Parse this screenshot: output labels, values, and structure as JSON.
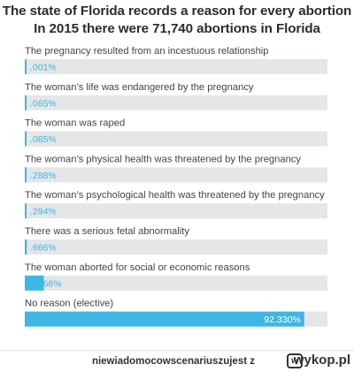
{
  "header": {
    "title_line1": "The state of Florida records a reason for every abortion",
    "title_line2": "In 2015 there were 71,740 abortions in Florida"
  },
  "chart_data": {
    "type": "bar",
    "orientation": "horizontal",
    "categories": [
      "The pregnancy resulted from an incestuous relationship",
      "The woman’s life was endangered by the pregnancy",
      "The woman was raped",
      "The woman’s physical health was threatened by the pregnancy",
      "The woman’s psychological health was threatened by the pregnancy",
      "There was a serious fetal abnormality",
      "The woman aborted for social or economic reasons",
      "No reason (elective)"
    ],
    "values": [
      0.001,
      0.065,
      0.085,
      0.288,
      0.294,
      0.666,
      6.268,
      92.33
    ],
    "value_labels": [
      ".001%",
      ".065%",
      ".085%",
      ".288%",
      ".294%",
      ".666%",
      "6.268%",
      "92.330%"
    ],
    "xlim": [
      0,
      100
    ],
    "bar_color": "#3db7e4",
    "track_color": "#e4e6e8",
    "label_color": "#3db7e4",
    "label_color_inside": "#ffffff"
  },
  "footer": {
    "credit": "niewiadomocowscenariuszujest z",
    "brand_mark": "w",
    "brand": "wykop.pl"
  }
}
